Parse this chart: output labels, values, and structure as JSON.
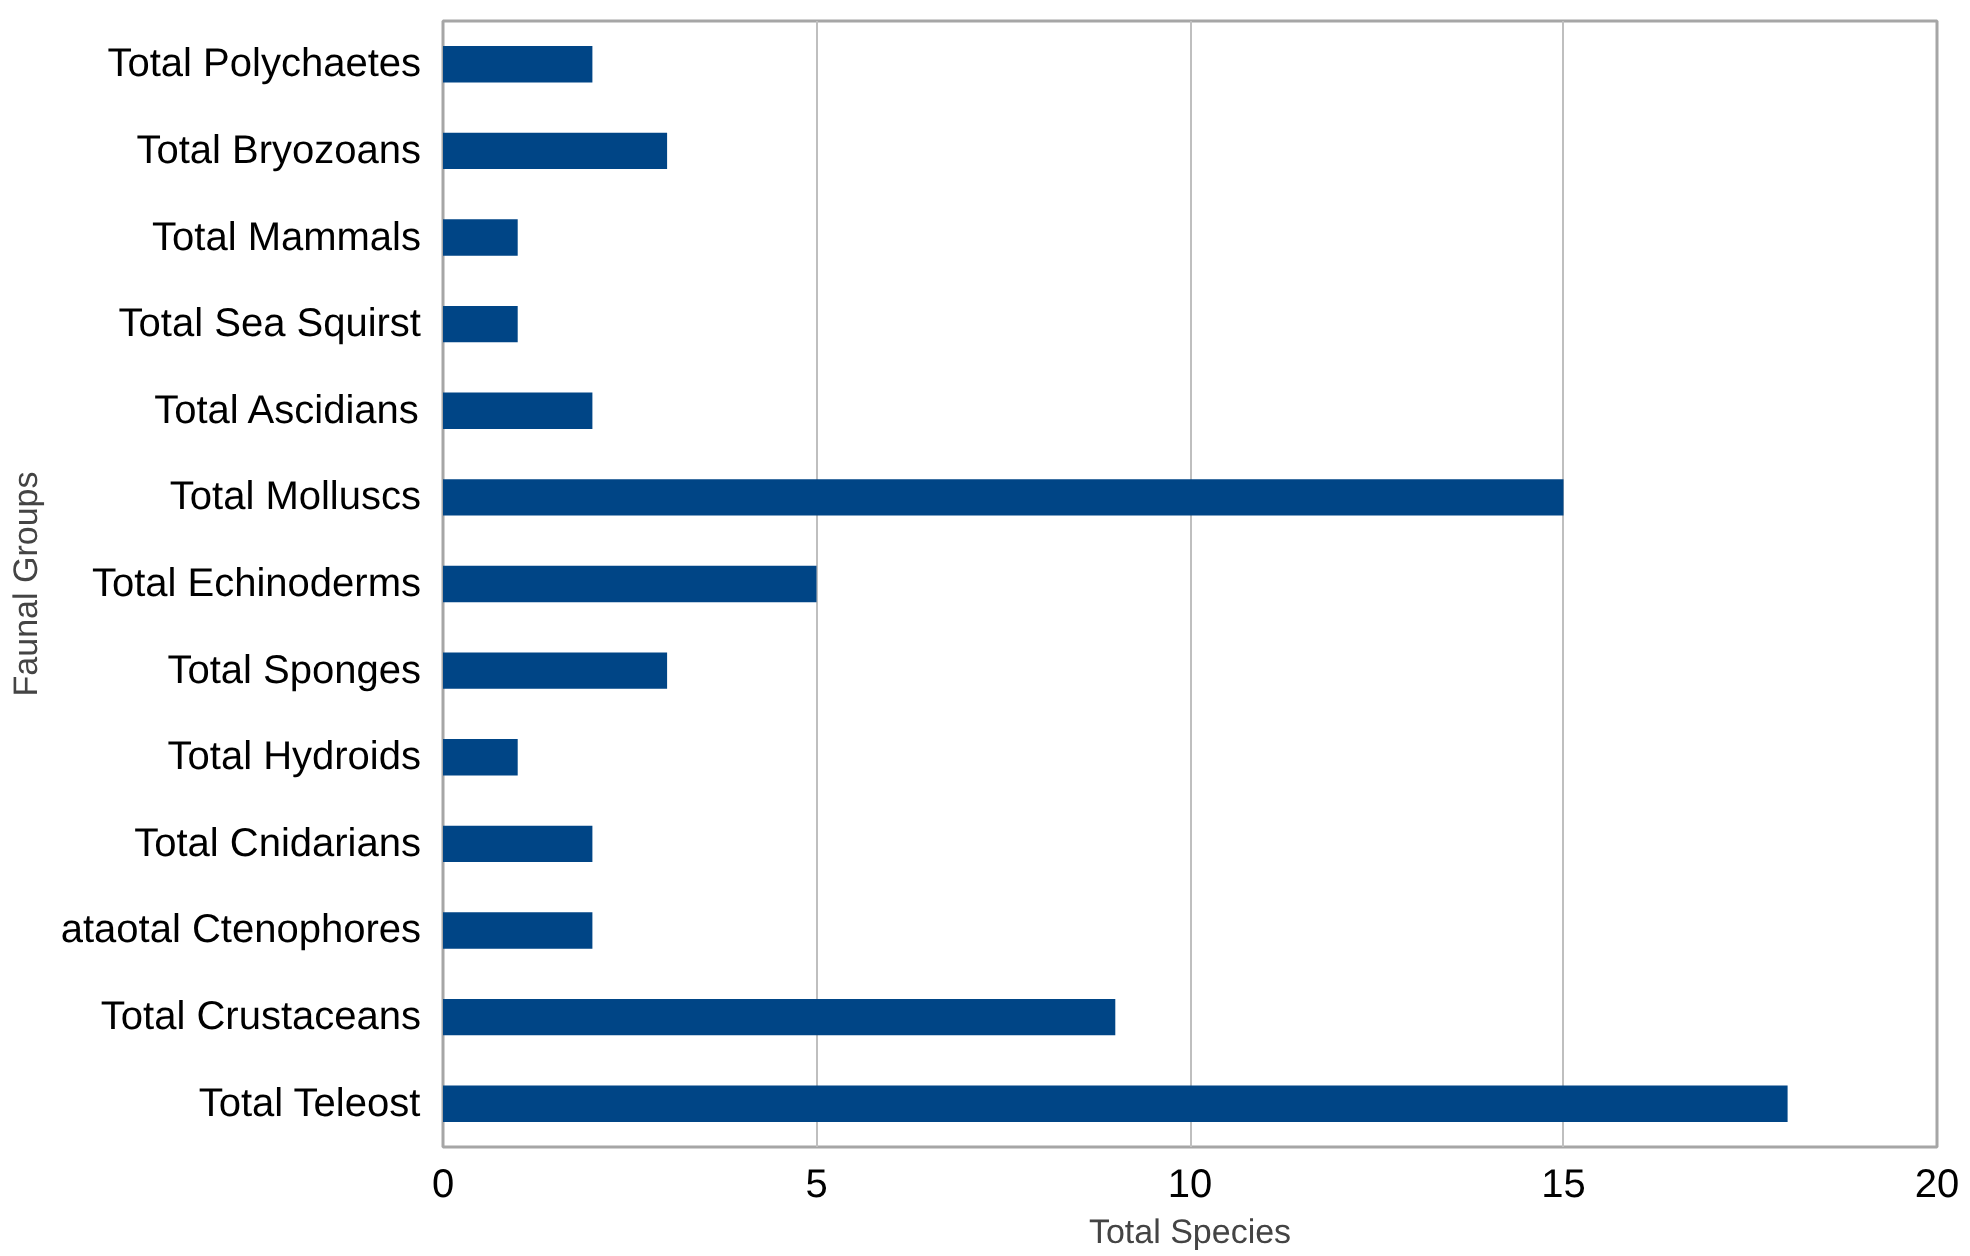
{
  "chart_data": {
    "type": "bar",
    "orientation": "horizontal",
    "xlabel": "Total Species",
    "ylabel": "Faunal Groups",
    "categories": [
      "Total Polychaetes",
      "Total Bryozoans",
      "Total Mammals",
      "Total Sea Squirst",
      "Total Ascidians",
      "Total Molluscs",
      "Total Echinoderms",
      "Total Sponges",
      "Total Hydroids",
      "Total Cnidarians",
      "ataotal Ctenophores",
      "Total Crustaceans",
      "Total Teleost"
    ],
    "values": [
      2,
      3,
      1,
      1,
      2,
      15,
      5,
      3,
      1,
      2,
      2,
      9,
      18
    ],
    "color": "#004586",
    "xlim": [
      0,
      20
    ],
    "xticks": [
      0,
      5,
      10,
      15,
      20
    ],
    "grid": "x"
  }
}
